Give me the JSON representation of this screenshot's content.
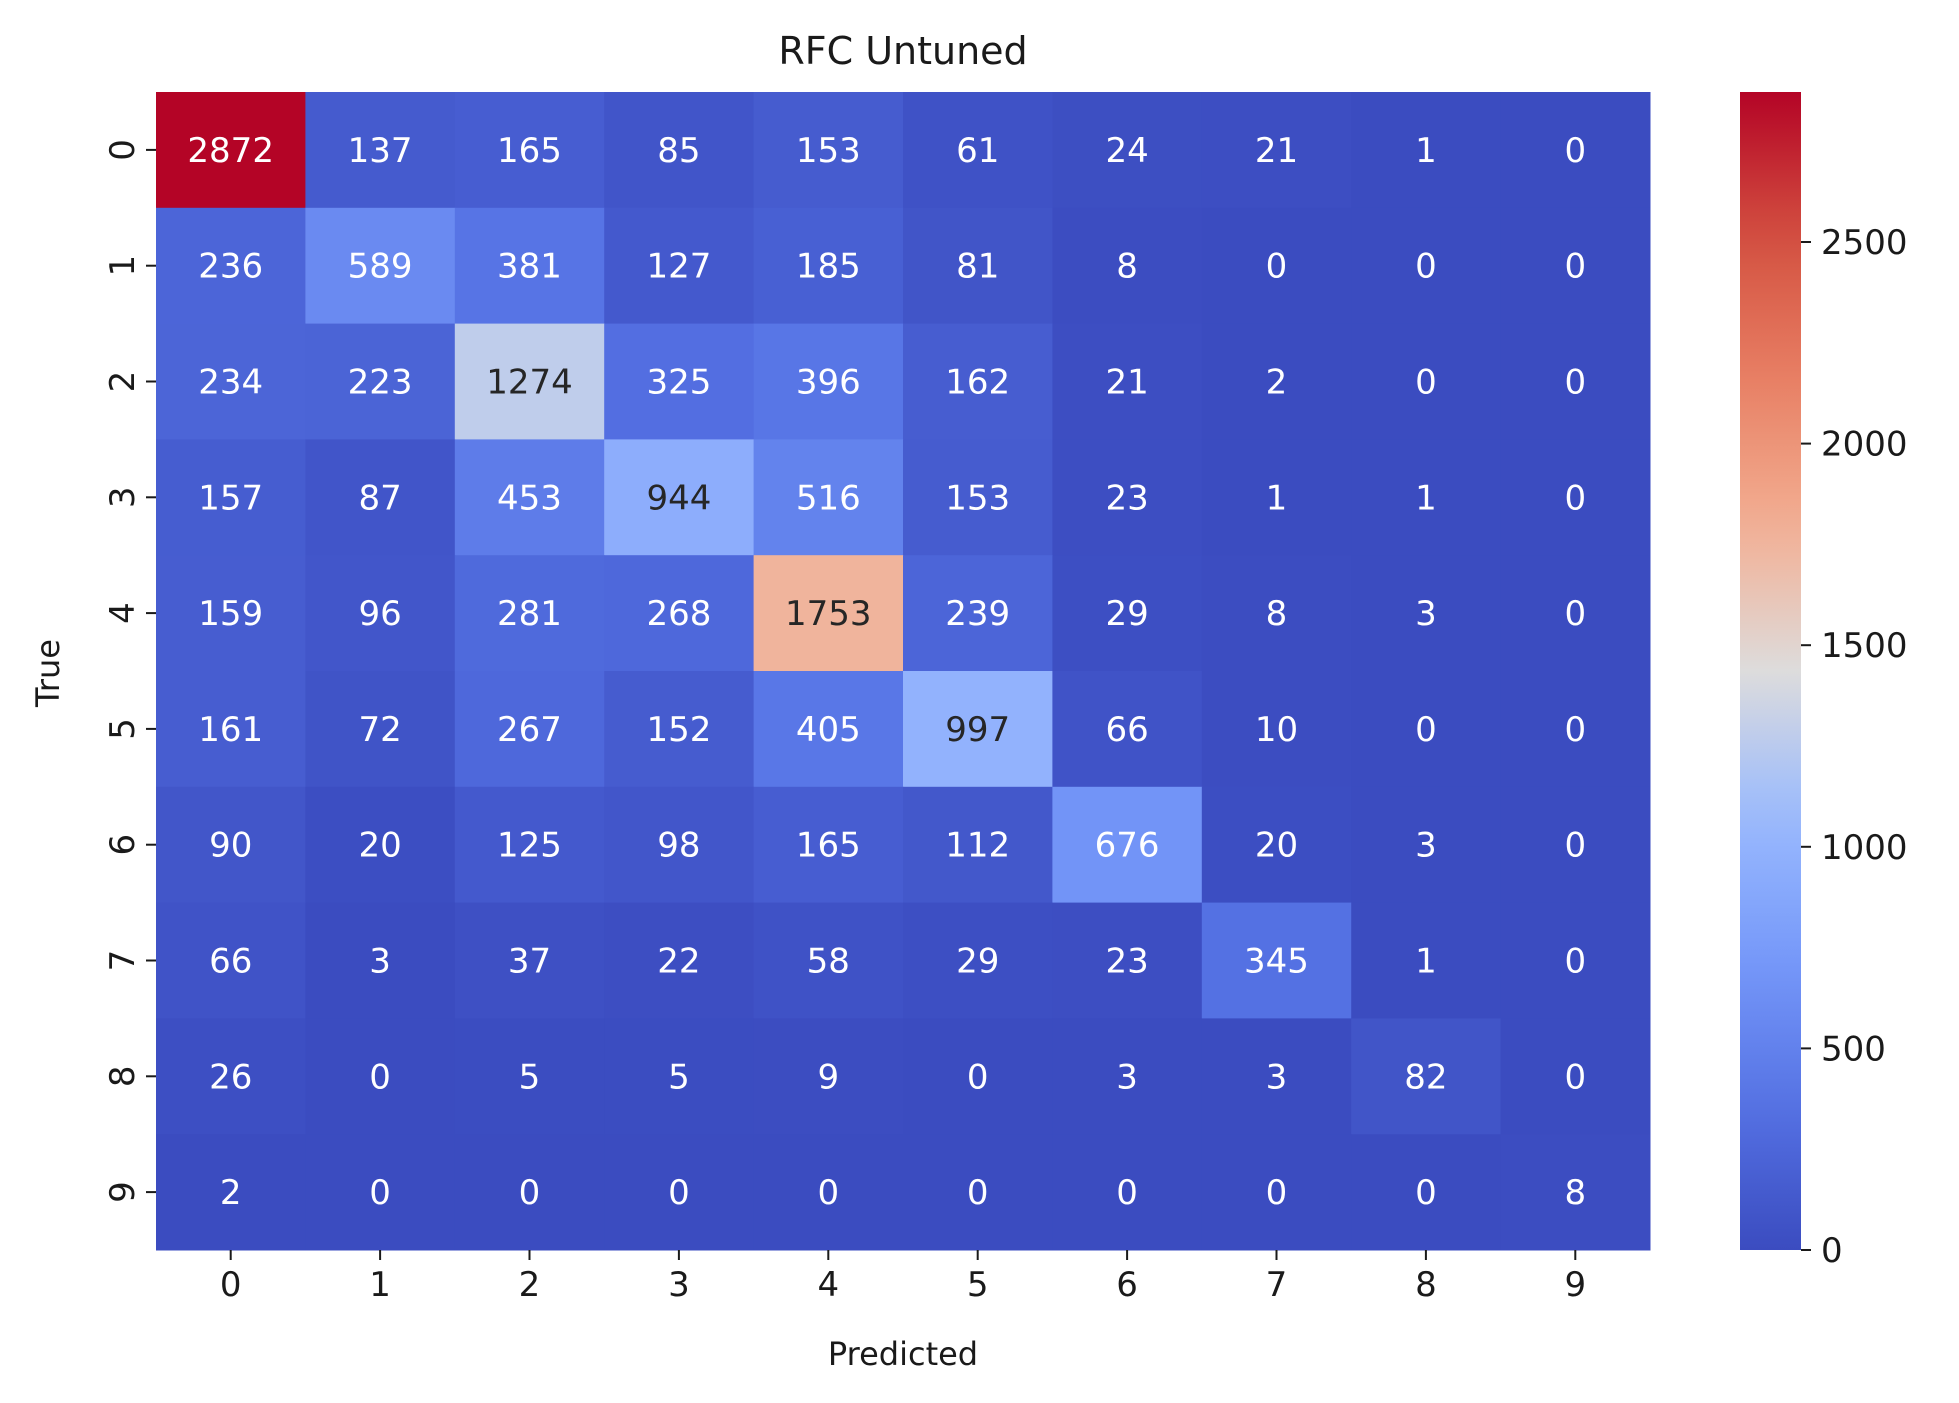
{
  "chart_data": {
    "type": "heatmap",
    "title": "RFC Untuned",
    "xlabel": "Predicted",
    "ylabel": "True",
    "x_categories": [
      "0",
      "1",
      "2",
      "3",
      "4",
      "5",
      "6",
      "7",
      "8",
      "9"
    ],
    "y_categories": [
      "0",
      "1",
      "2",
      "3",
      "4",
      "5",
      "6",
      "7",
      "8",
      "9"
    ],
    "values": [
      [
        2872,
        137,
        165,
        85,
        153,
        61,
        24,
        21,
        1,
        0
      ],
      [
        236,
        589,
        381,
        127,
        185,
        81,
        8,
        0,
        0,
        0
      ],
      [
        234,
        223,
        1274,
        325,
        396,
        162,
        21,
        2,
        0,
        0
      ],
      [
        157,
        87,
        453,
        944,
        516,
        153,
        23,
        1,
        1,
        0
      ],
      [
        159,
        96,
        281,
        268,
        1753,
        239,
        29,
        8,
        3,
        0
      ],
      [
        161,
        72,
        267,
        152,
        405,
        997,
        66,
        10,
        0,
        0
      ],
      [
        90,
        20,
        125,
        98,
        165,
        112,
        676,
        20,
        3,
        0
      ],
      [
        66,
        3,
        37,
        22,
        58,
        29,
        23,
        345,
        1,
        0
      ],
      [
        26,
        0,
        5,
        5,
        9,
        0,
        3,
        3,
        82,
        0
      ],
      [
        2,
        0,
        0,
        0,
        0,
        0,
        0,
        0,
        0,
        8
      ]
    ],
    "colormap": "coolwarm",
    "vmin": 0,
    "vmax": 2872,
    "colorbar_ticks": [
      0,
      500,
      1000,
      1500,
      2000,
      2500
    ],
    "colorbar_tick_labels": [
      "0",
      "500",
      "1000",
      "1500",
      "2000",
      "2500"
    ],
    "colors": {
      "low": "#3b4cc0",
      "mid": "#dddcdc",
      "high": "#b40426"
    }
  }
}
